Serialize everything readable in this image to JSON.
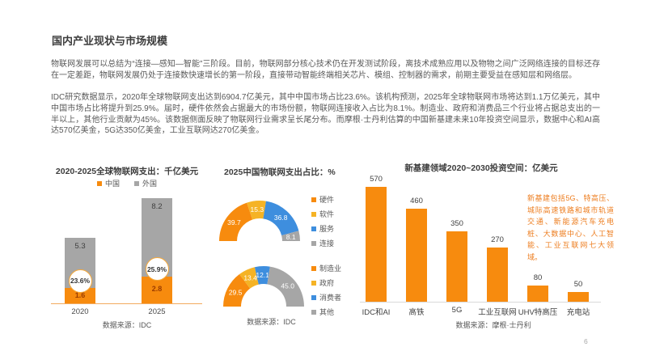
{
  "title": "国内产业现状与市场规模",
  "paragraphs": [
    "物联网发展可以总结为“连接—感知—智能”三阶段。目前，物联网部分核心技术仍在开发测试阶段，离技术成熟应用以及物物之间广泛网络连接的目标还存在一定差距，物联网发展仍处于连接数快速增长的第一阶段，直接带动智能终端相关芯片、模组、控制器的需求，前期主要受益在感知层和网络层。",
    "IDC研究数据显示，2020年全球物联网支出达到6904.7亿美元，其中中国市场占比23.6%。该机构预测，2025年全球物联网市场将达到1.1万亿美元，其中中国市场占比将提升到25.9%。届时，硬件依然会占据最大的市场份额，物联网连接收入占比为8.1%。制造业、政府和消费品三个行业将占据总支出的一半以上，其他行业贡献为45%。该数据侧面反映了物联网行业需求呈长尾分布。而摩根·士丹利估算的中国新基建未来10年投资空间显示，数据中心和AI高达570亿美金，5G达350亿美金，工业互联网达270亿美金。",
    "新基建包括5G、特高压、城际高速铁路和城市轨道交通、新能源汽车充电桩、大数据中心、人工智能、工业互联网七大领域。"
  ],
  "colors": {
    "orange": "#f78b0e",
    "yellow": "#f5b325",
    "blue": "#3e8ede",
    "gray": "#a6a6a6",
    "palette": [
      "#f78b0e",
      "#f5b325",
      "#3e8ede",
      "#a6a6a6"
    ],
    "axis_left": "#f2aa5e",
    "axis_right": "#d9d9d9",
    "dark_value": "#9c3d00",
    "badge_ring": "#f5a93b"
  },
  "page": {
    "number": "6"
  },
  "chart_data": [
    {
      "type": "bar",
      "variant": "stacked",
      "title": "2020-2025全球物联网支出：千亿美元",
      "categories": [
        "2020",
        "2025"
      ],
      "series": [
        {
          "name": "中国",
          "values": [
            1.6,
            2.8
          ],
          "color": "#f78b0e"
        },
        {
          "name": "外国",
          "values": [
            5.3,
            8.2
          ],
          "color": "#a6a6a6"
        }
      ],
      "badges": [
        "23.6%",
        "25.9%"
      ],
      "ylim": [
        0,
        11.5
      ],
      "legend_position": "top",
      "grid": false,
      "source": "数据来源：IDC"
    },
    {
      "type": "pie",
      "variant": "half-donut-pair",
      "title": "2025中国物联网支出占比：%",
      "donuts": [
        {
          "labels": [
            "硬件",
            "软件",
            "服务",
            "连接"
          ],
          "values": [
            39.7,
            15.3,
            36.8,
            8.1
          ]
        },
        {
          "labels": [
            "制造业",
            "政府",
            "消费者",
            "其他"
          ],
          "values": [
            29.5,
            13.4,
            12.1,
            45.0
          ]
        }
      ],
      "legend_position": "right",
      "source": "数据来源：IDC"
    },
    {
      "type": "bar",
      "title": "新基建领域2020~2030投资空间：亿美元",
      "categories": [
        "IDC和AI",
        "高铁",
        "5G",
        "工业互联网",
        "UHV特高压",
        "充电站"
      ],
      "values": [
        570,
        460,
        350,
        270,
        80,
        50
      ],
      "ylim": [
        0,
        620
      ],
      "grid": false,
      "source": "数据来源：摩根·士丹利"
    }
  ]
}
